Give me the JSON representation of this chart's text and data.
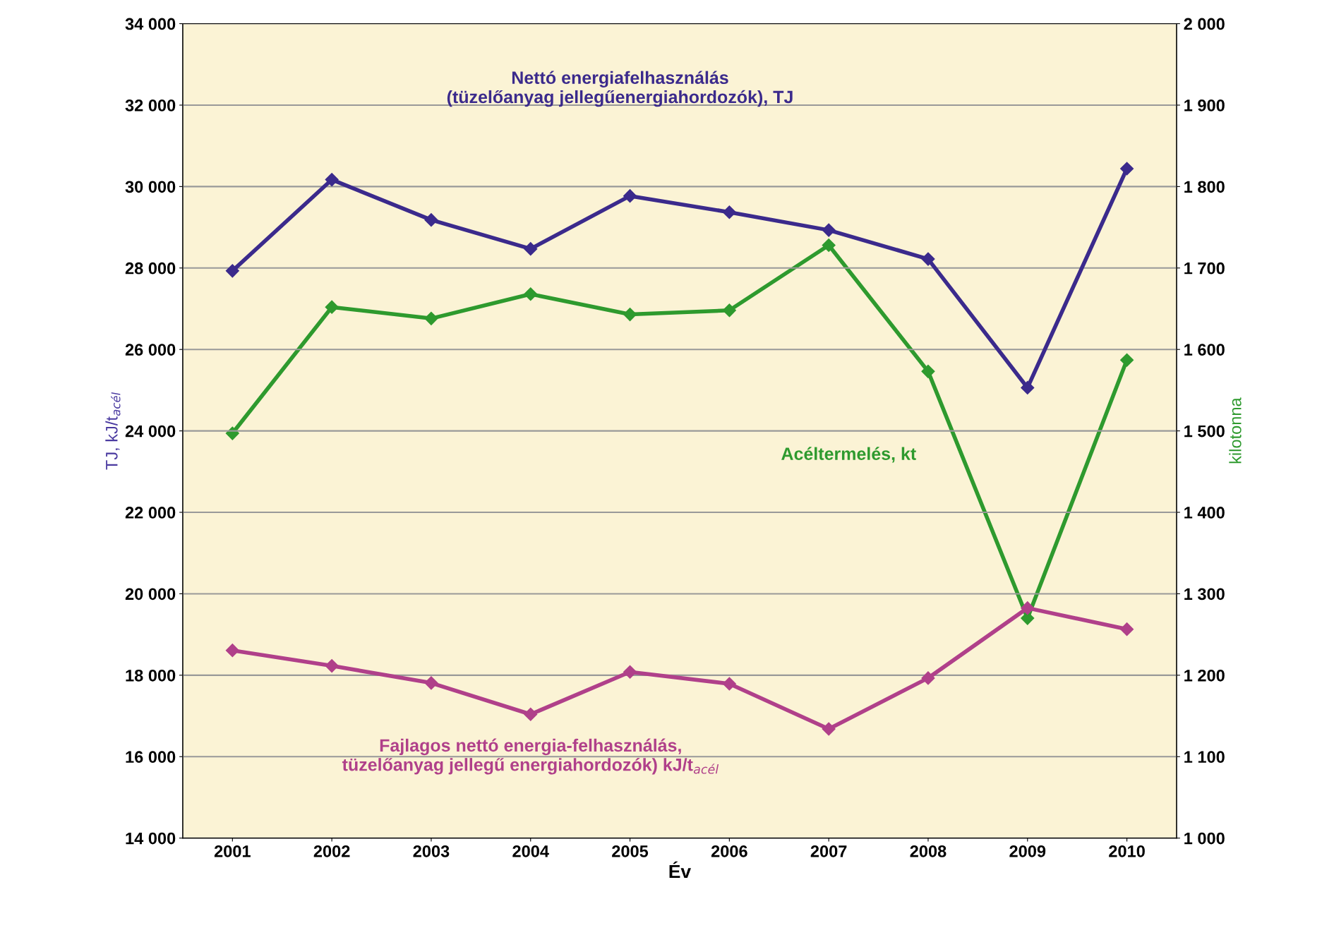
{
  "chart_data": {
    "type": "line",
    "xlabel": "Év",
    "ylabel": "TJ, kJ/t$_{acél}$",
    "y2label": "kilotonna",
    "categories": [
      "2001",
      "2002",
      "2003",
      "2004",
      "2005",
      "2006",
      "2007",
      "2008",
      "2009",
      "2010"
    ],
    "series": [
      {
        "color": "#3b2a8c",
        "values": [
          27930,
          30170,
          29180,
          28470,
          29770,
          29370,
          28930,
          28220,
          25060,
          30440
        ]
      },
      {
        "color": "#b0408a",
        "values": [
          18610,
          18230,
          17810,
          17040,
          18080,
          17790,
          16680,
          17930,
          19650,
          19130
        ]
      },
      {
        "color": "#2e9a2e",
        "axis": "y2",
        "values": [
          1497,
          1652,
          1638,
          1668,
          1643,
          1648,
          1728,
          1573,
          1270,
          1587
        ]
      }
    ],
    "ylim": [
      14000,
      34000
    ],
    "yticks": [
      {
        "value": 14000,
        "label": "14 000"
      },
      {
        "value": 16000,
        "label": "16 000"
      },
      {
        "value": 18000,
        "label": "18 000"
      },
      {
        "value": 20000,
        "label": "20 000"
      },
      {
        "value": 22000,
        "label": "22 000"
      },
      {
        "value": 24000,
        "label": "24 000"
      },
      {
        "value": 26000,
        "label": "26 000"
      },
      {
        "value": 28000,
        "label": "28 000"
      },
      {
        "value": 30000,
        "label": "30 000"
      },
      {
        "value": 32000,
        "label": "32 000"
      },
      {
        "value": 34000,
        "label": "34 000"
      }
    ],
    "y2lim": [
      1000,
      2000
    ],
    "y2ticks": [
      {
        "value": 1000,
        "label": "1 000"
      },
      {
        "value": 1100,
        "label": "1 100"
      },
      {
        "value": 1200,
        "label": "1 200"
      },
      {
        "value": 1300,
        "label": "1 300"
      },
      {
        "value": 1400,
        "label": "1 400"
      },
      {
        "value": 1500,
        "label": "1 500"
      },
      {
        "value": 1600,
        "label": "1 600"
      },
      {
        "value": 1700,
        "label": "1 700"
      },
      {
        "value": 1800,
        "label": "1 800"
      },
      {
        "value": 1900,
        "label": "1 900"
      },
      {
        "value": 2000,
        "label": "2 000"
      }
    ],
    "annotations": [
      "Nettó energiafelhasználás\n(tüzelőanyag jellegűenergiahordozók), TJ",
      "Acéltermelés, kt",
      "Fajlagos nettó energia-felhasználás,\ntüzelőanyag jellegű energiahordozók) kJ/t$_{acél}$"
    ],
    "grid": "y",
    "marker": "diamond",
    "line_style": "solid",
    "legend": false
  }
}
